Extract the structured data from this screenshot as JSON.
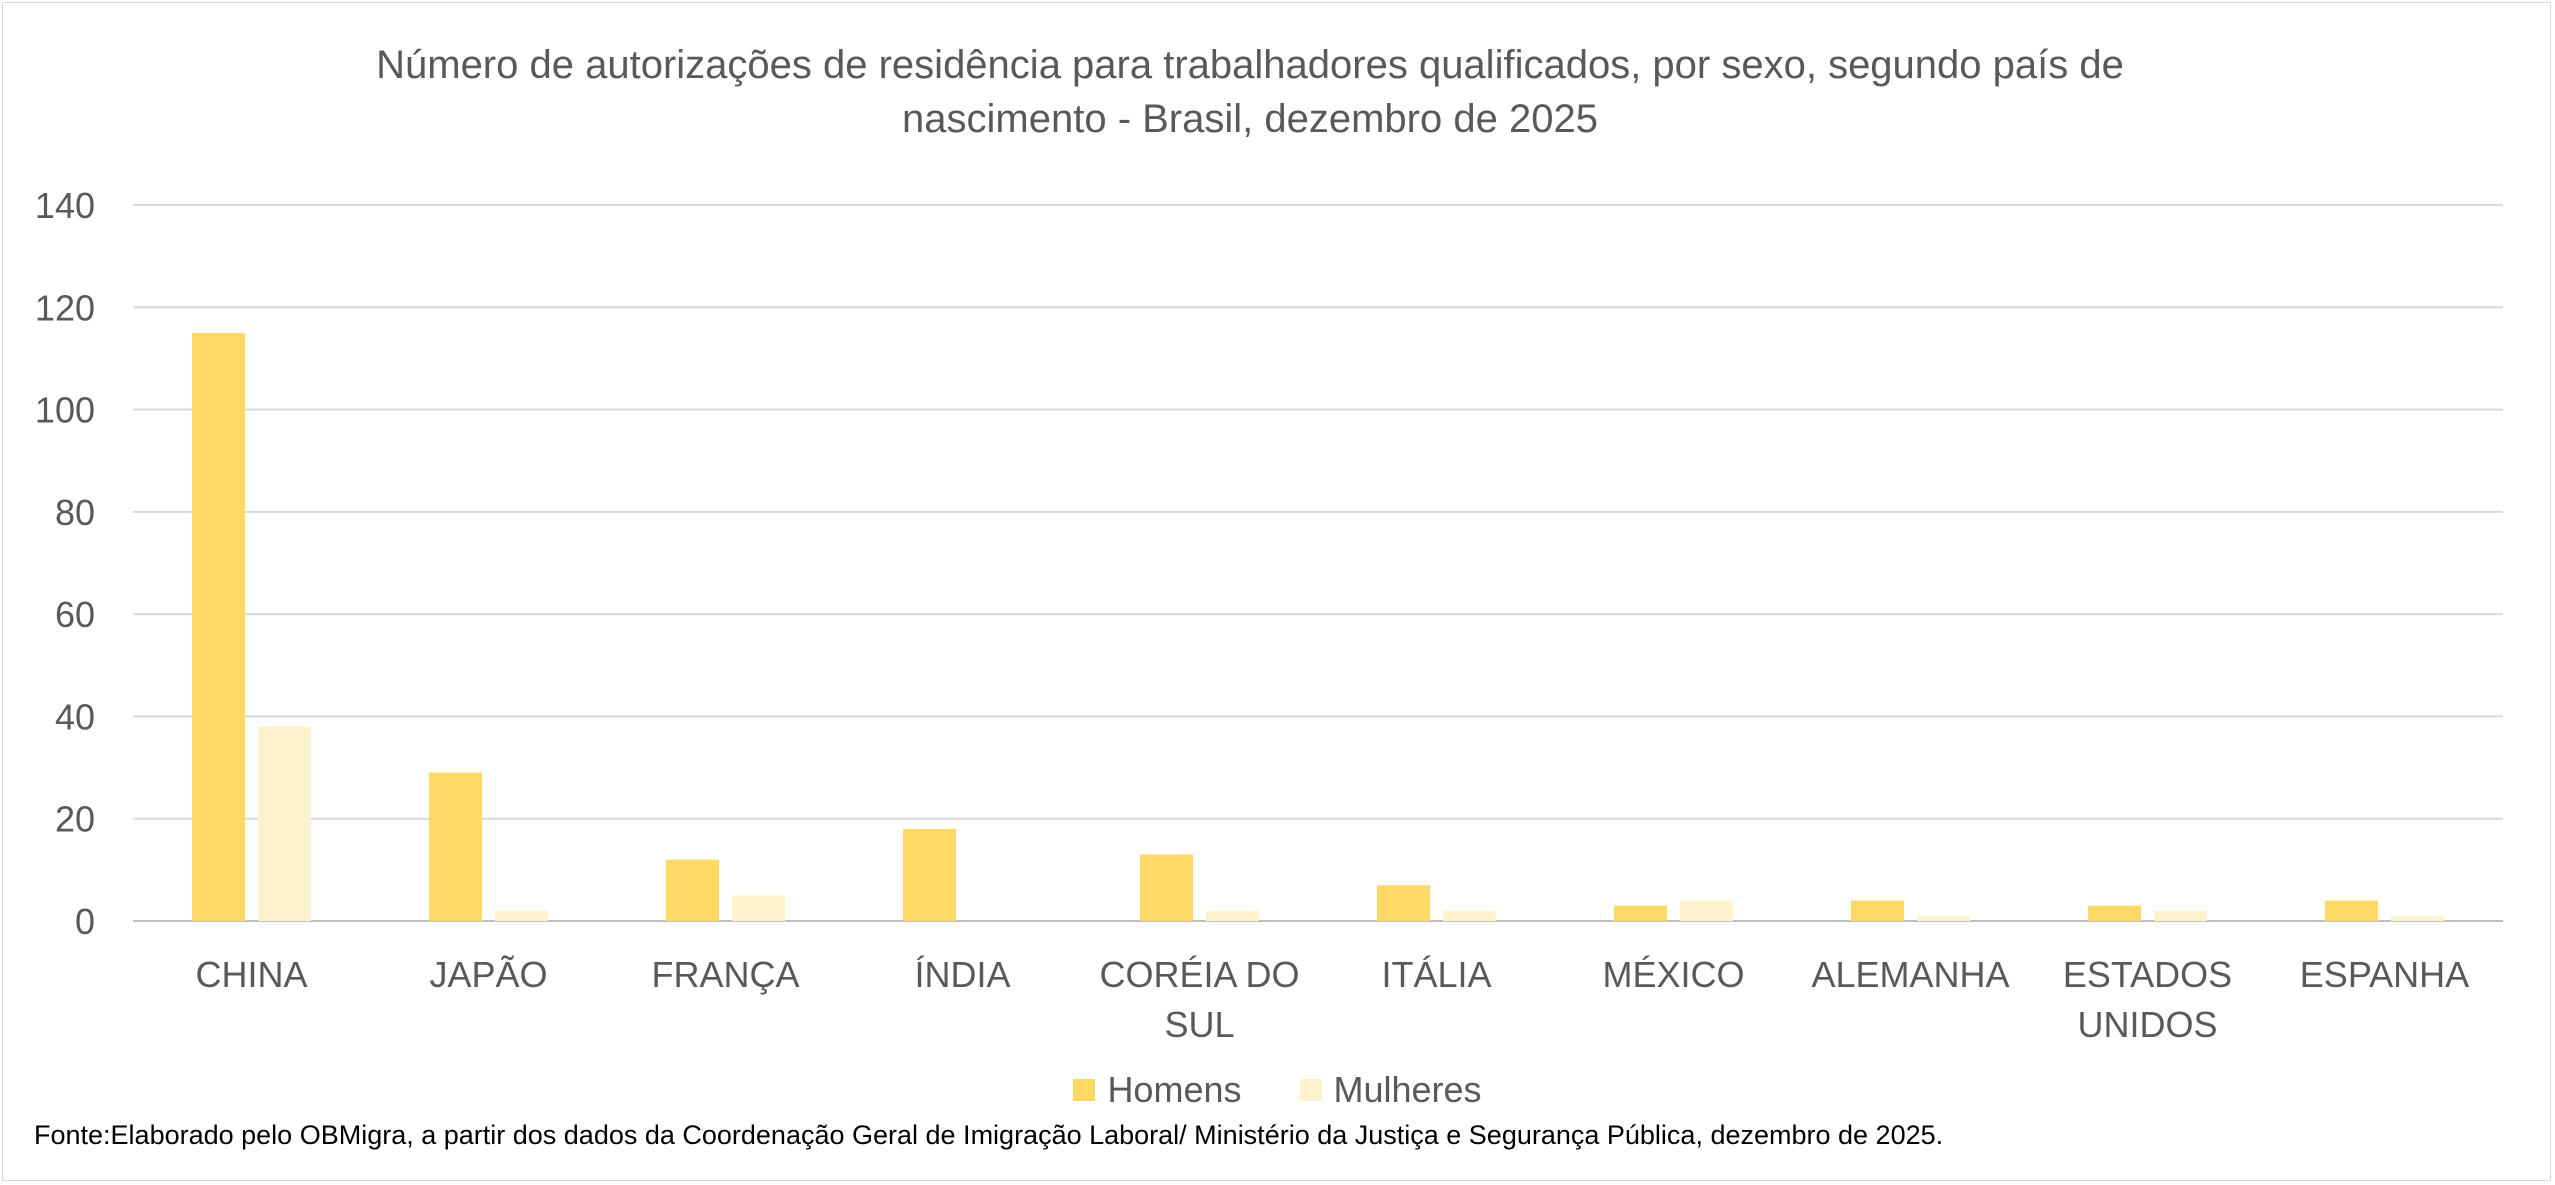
{
  "chart_data": {
    "type": "bar",
    "title": "Número de autorizações de residência para trabalhadores qualificados, por sexo, segundo país de nascimento - Brasil, dezembro de 2025",
    "title_lines": [
      "Número de autorizações de residência para trabalhadores qualificados, por sexo, segundo país de",
      "nascimento - Brasil, dezembro de 2025"
    ],
    "categories": [
      "CHINA",
      "JAPÃO",
      "FRANÇA",
      "ÍNDIA",
      "CORÉIA DO SUL",
      "ITÁLIA",
      "MÉXICO",
      "ALEMANHA",
      "ESTADOS UNIDOS",
      "ESPANHA"
    ],
    "category_lines": [
      [
        "CHINA"
      ],
      [
        "JAPÃO"
      ],
      [
        "FRANÇA"
      ],
      [
        "ÍNDIA"
      ],
      [
        "CORÉIA DO",
        "SUL"
      ],
      [
        "ITÁLIA"
      ],
      [
        "MÉXICO"
      ],
      [
        "ALEMANHA"
      ],
      [
        "ESTADOS",
        "UNIDOS"
      ],
      [
        "ESPANHA"
      ]
    ],
    "series": [
      {
        "name": "Homens",
        "color": "#ffd966",
        "values": [
          115,
          29,
          12,
          18,
          13,
          7,
          3,
          4,
          3,
          4
        ]
      },
      {
        "name": "Mulheres",
        "color": "#fff2cc",
        "values": [
          38,
          2,
          5,
          0,
          2,
          2,
          4,
          1,
          2,
          1
        ]
      }
    ],
    "xlabel": "",
    "ylabel": "",
    "ylim": [
      0,
      140
    ],
    "yticks": [
      0,
      20,
      40,
      60,
      80,
      100,
      120,
      140
    ],
    "grid": true,
    "legend_position": "bottom"
  },
  "source_note": "Fonte:Elaborado pelo OBMigra, a partir dos dados da Coordenação Geral de Imigração Laboral/ Ministério da Justiça e Segurança Pública, dezembro de 2025."
}
